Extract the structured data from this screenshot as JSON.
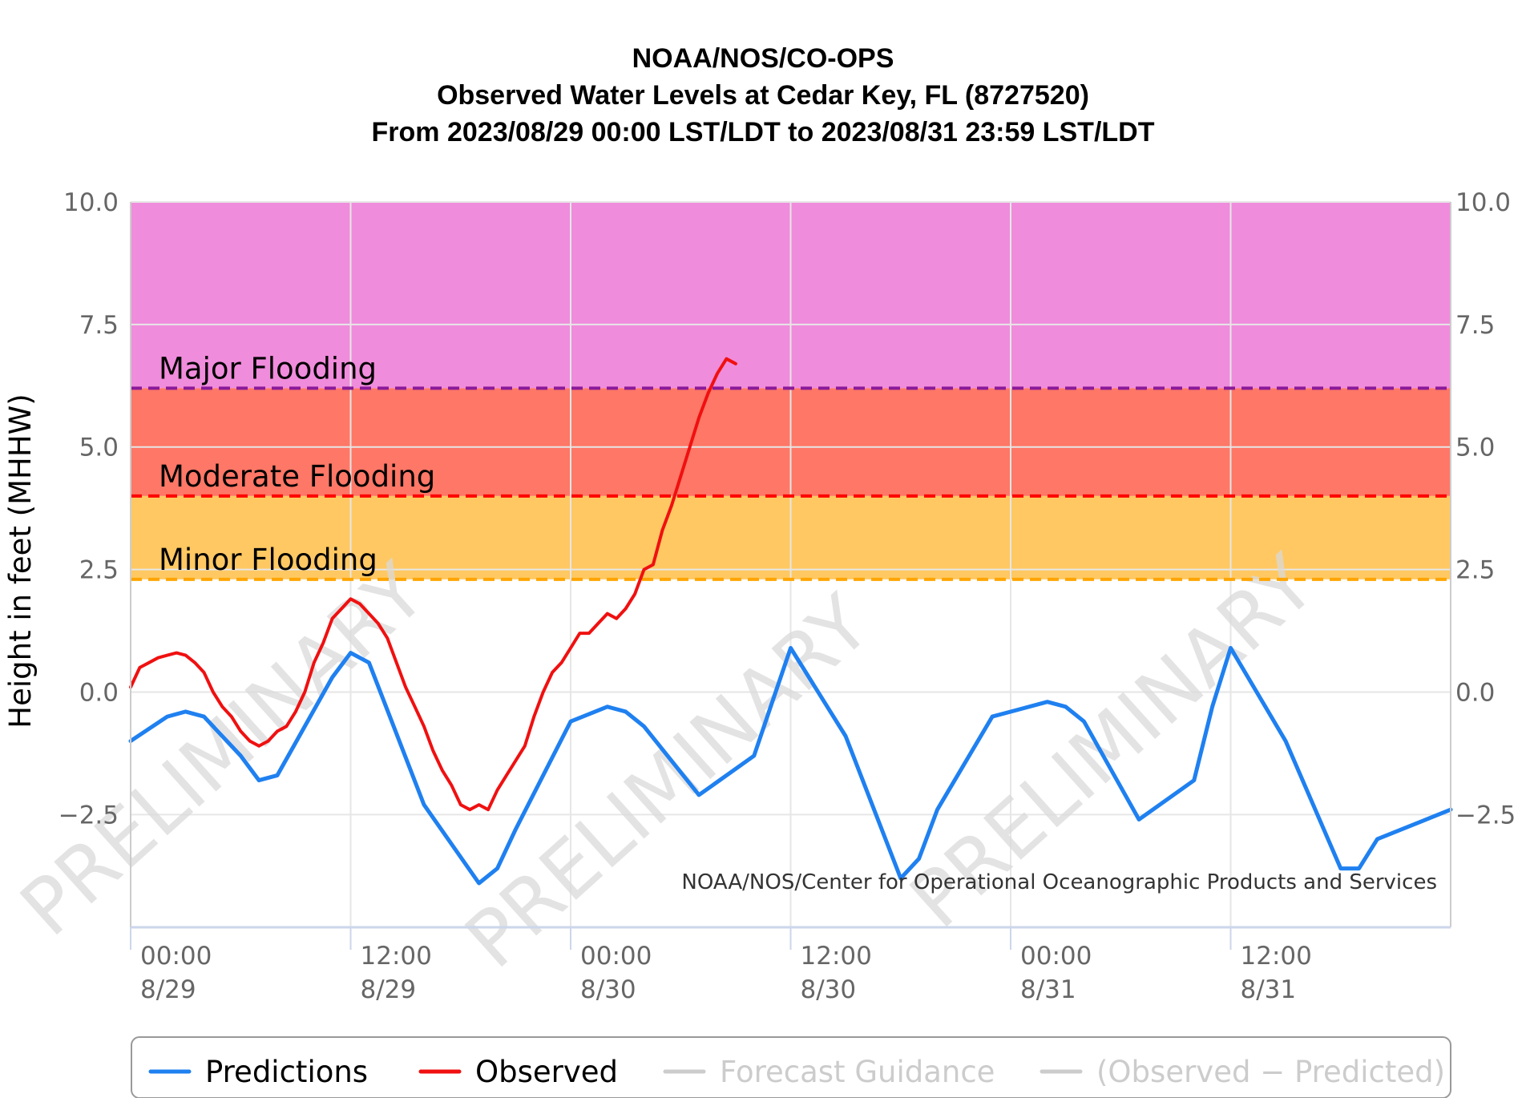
{
  "chart_data": {
    "type": "line",
    "title_lines": [
      "NOAA/NOS/CO-OPS",
      "Observed Water Levels at Cedar Key, FL (8727520)",
      "From 2023/08/29 00:00 LST/LDT to 2023/08/31 23:59 LST/LDT"
    ],
    "ylabel": "Height in feet (MHHW)",
    "xlabel": "",
    "x_unit": "hours since 2023/08/29 00:00",
    "xlim": [
      0,
      72
    ],
    "ylim": [
      -4.8,
      10.0
    ],
    "y_ticks": [
      "10.0",
      "7.5",
      "5.0",
      "2.5",
      "0.0",
      "−2.5"
    ],
    "y_tick_values": [
      10.0,
      7.5,
      5.0,
      2.5,
      0.0,
      -2.5
    ],
    "x_ticks": [
      {
        "hour": 0,
        "time": "00:00",
        "date": "8/29"
      },
      {
        "hour": 12,
        "time": "12:00",
        "date": "8/29"
      },
      {
        "hour": 24,
        "time": "00:00",
        "date": "8/30"
      },
      {
        "hour": 36,
        "time": "12:00",
        "date": "8/30"
      },
      {
        "hour": 48,
        "time": "00:00",
        "date": "8/31"
      },
      {
        "hour": 60,
        "time": "12:00",
        "date": "8/31"
      }
    ],
    "grid": true,
    "flood_bands": [
      {
        "label": "Major Flooding",
        "from": 6.2,
        "to": 10.0,
        "fill": "#f08cdc",
        "line": "#8b1a9a"
      },
      {
        "label": "Moderate Flooding",
        "from": 4.0,
        "to": 6.2,
        "fill": "#ff7766",
        "line": "#ff0000"
      },
      {
        "label": "Minor Flooding",
        "from": 2.3,
        "to": 4.0,
        "fill": "#ffc862",
        "line": "#ffa500"
      }
    ],
    "series": [
      {
        "name": "Predictions",
        "color": "#1f80f0",
        "x": [
          0,
          2,
          3,
          4,
          6,
          7,
          8,
          11,
          12,
          13,
          16,
          19,
          20,
          21,
          24,
          26,
          27,
          28,
          31,
          34,
          35,
          36,
          39,
          42,
          43,
          44,
          47,
          50,
          51,
          52,
          55,
          58,
          59,
          60,
          63,
          66,
          67,
          68,
          72
        ],
        "y": [
          -1.0,
          -0.5,
          -0.4,
          -0.5,
          -1.3,
          -1.8,
          -1.7,
          0.3,
          0.8,
          0.6,
          -2.3,
          -3.9,
          -3.6,
          -2.8,
          -0.6,
          -0.3,
          -0.4,
          -0.7,
          -2.1,
          -1.3,
          -0.2,
          0.9,
          -0.9,
          -3.8,
          -3.4,
          -2.4,
          -0.5,
          -0.2,
          -0.3,
          -0.6,
          -2.6,
          -1.8,
          -0.3,
          0.9,
          -1.0,
          -3.6,
          -3.6,
          -3.0,
          -2.4
        ]
      },
      {
        "name": "Observed",
        "color": "#f01010",
        "x": [
          0,
          0.5,
          1,
          1.5,
          2,
          2.5,
          3,
          3.5,
          4,
          4.5,
          5,
          5.5,
          6,
          6.5,
          7,
          7.5,
          8,
          8.5,
          9,
          9.5,
          10,
          10.5,
          11,
          11.5,
          12,
          12.5,
          13,
          13.5,
          14,
          14.5,
          15,
          15.5,
          16,
          16.5,
          17,
          17.5,
          18,
          18.5,
          19,
          19.5,
          20,
          20.5,
          21,
          21.5,
          22,
          22.5,
          23,
          23.5,
          24,
          24.5,
          25,
          25.5,
          26,
          26.5,
          27,
          27.5,
          28,
          28.5,
          29,
          29.5,
          30,
          30.5,
          31,
          31.5,
          32,
          32.5,
          33
        ],
        "y": [
          0.1,
          0.5,
          0.6,
          0.7,
          0.75,
          0.8,
          0.75,
          0.6,
          0.4,
          0.0,
          -0.3,
          -0.5,
          -0.8,
          -1.0,
          -1.1,
          -1.0,
          -0.8,
          -0.7,
          -0.4,
          0.0,
          0.6,
          1.0,
          1.5,
          1.7,
          1.9,
          1.8,
          1.6,
          1.4,
          1.1,
          0.6,
          0.1,
          -0.3,
          -0.7,
          -1.2,
          -1.6,
          -1.9,
          -2.3,
          -2.4,
          -2.3,
          -2.4,
          -2.0,
          -1.7,
          -1.4,
          -1.1,
          -0.5,
          0.0,
          0.4,
          0.6,
          0.9,
          1.2,
          1.2,
          1.4,
          1.6,
          1.5,
          1.7,
          2.0,
          2.5,
          2.6,
          3.3,
          3.8,
          4.4,
          5.0,
          5.6,
          6.1,
          6.5,
          6.8,
          6.7
        ]
      }
    ],
    "legend": {
      "position": "bottom",
      "items": [
        {
          "label": "Predictions",
          "color": "#1f80f0",
          "active": true
        },
        {
          "label": "Observed",
          "color": "#f01010",
          "active": true
        },
        {
          "label": "Forecast Guidance",
          "color": "#cccccc",
          "active": false
        },
        {
          "label": "(Observed − Predicted)",
          "color": "#cccccc",
          "active": false
        }
      ]
    },
    "credit": "NOAA/NOS/Center for Operational Oceanographic Products and Services",
    "watermark": "PRELIMINARY"
  }
}
